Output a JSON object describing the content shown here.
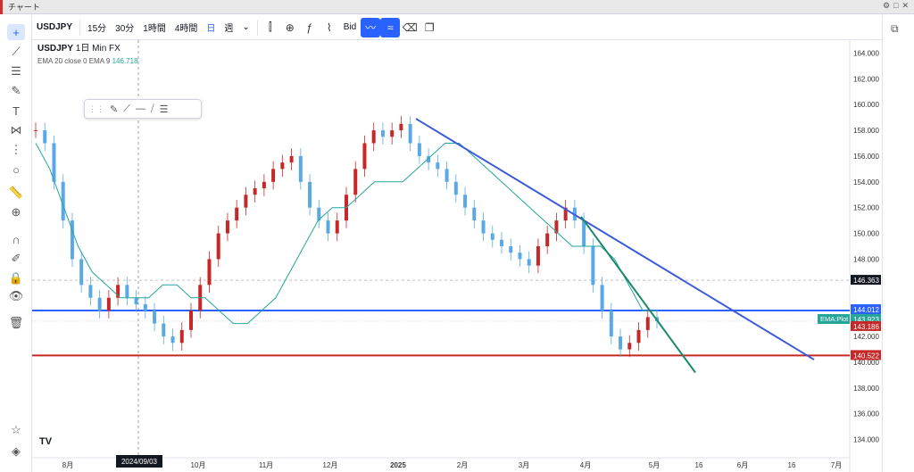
{
  "window": {
    "title": "チャート"
  },
  "toolbar": {
    "symbol": "USDJPY",
    "intervals": [
      "15分",
      "30分",
      "1時間",
      "4時間",
      "日",
      "週"
    ],
    "active_interval": "日",
    "price_type": "Bid"
  },
  "legend": {
    "symbol": "USDJPY",
    "interval": "1日",
    "source": "Min FX",
    "ema_label": "EMA 20 close 0 EMA 9",
    "ema_value": "146.718"
  },
  "price_axis": {
    "labels": [
      "164.000",
      "162.000",
      "160.000",
      "158.000",
      "156.000",
      "154.000",
      "152.000",
      "150.000",
      "148.000",
      "142.000",
      "140.000",
      "138.000",
      "136.000",
      "134.000"
    ],
    "badges": [
      {
        "text": "146.363",
        "color": "#131722"
      },
      {
        "text": "144.012",
        "color": "#2962ff"
      },
      {
        "text": "143.923",
        "color": "#26a69a"
      },
      {
        "text": "143.186",
        "color": "#c62828"
      },
      {
        "text": "140.522",
        "color": "#c62828"
      }
    ],
    "ema_tag": "EMA:Plot"
  },
  "time_axis": {
    "labels": [
      "8月",
      "10月",
      "11月",
      "12月",
      "2025",
      "2月",
      "3月",
      "4月",
      "5月",
      "16",
      "6月",
      "16",
      "7月"
    ],
    "crosshair_date": "2024/09/03"
  },
  "colors": {
    "up": "#c62828",
    "down": "#5aa9e6",
    "ema": "#26a69a",
    "trend_blue": "#3b5bdb",
    "trend_green": "#1b8a6b",
    "support": "#c62828",
    "resistance": "#2962ff"
  },
  "chart_data": {
    "type": "line",
    "symbol": "USDJPY",
    "ylim": [
      133,
      165
    ],
    "series": [
      {
        "name": "EMA",
        "values": [
          157,
          155,
          152,
          149,
          147,
          146,
          145,
          145,
          145,
          146,
          146,
          145,
          145,
          144,
          143,
          143,
          144,
          145,
          147,
          149,
          151,
          152,
          152,
          153,
          154,
          154,
          154,
          155,
          156,
          157,
          157,
          156,
          155,
          154,
          153,
          152,
          151,
          150,
          149,
          149,
          149,
          148,
          146,
          144,
          144
        ]
      }
    ]
  }
}
